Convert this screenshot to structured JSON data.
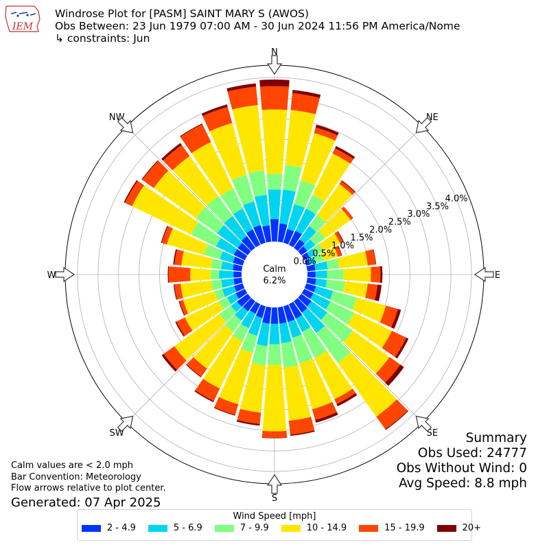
{
  "header": {
    "logo_text": "IEM",
    "title_line1": "Windrose Plot for [PASM] SAINT MARY S (AWOS)",
    "title_line2": "Obs Between: 23 Jun 1979 07:00 AM - 30 Jun 2024 11:56 PM America/Nome",
    "title_line3": "↳ constraints: Jun"
  },
  "summary": {
    "heading": "Summary",
    "obs_used": "Obs Used: 24777",
    "obs_without_wind": "Obs Without Wind: 0",
    "avg_speed": "Avg Speed: 8.8 mph"
  },
  "notes": {
    "calm_note": "Calm values are < 2.0 mph",
    "bar_convention": "Bar Convention: Meteorology",
    "flow_arrows": "Flow arrows relative to plot center.",
    "generated": "Generated: 07 Apr 2025"
  },
  "legend": {
    "title": "Wind Speed [mph]",
    "items": [
      {
        "label": "2 - 4.9",
        "color": "#0033ff"
      },
      {
        "label": "5 - 6.9",
        "color": "#00d4f0"
      },
      {
        "label": "7 - 9.9",
        "color": "#80ff80"
      },
      {
        "label": "10 - 14.9",
        "color": "#ffe600"
      },
      {
        "label": "15 - 19.9",
        "color": "#ff4500"
      },
      {
        "label": "20+",
        "color": "#800000"
      }
    ]
  },
  "chart_data": {
    "type": "windrose",
    "calm_label": "Calm",
    "calm_value": "6.2%",
    "direction_labels": [
      "N",
      "NE",
      "E",
      "SE",
      "S",
      "SW",
      "W",
      "NW"
    ],
    "radial_ticks": [
      "0.0%",
      "0.5%",
      "1.0%",
      "1.5%",
      "2.0%",
      "2.5%",
      "3.0%",
      "3.5%",
      "4.0%"
    ],
    "rmax": 4.3,
    "bins": [
      "2 - 4.9",
      "5 - 6.9",
      "7 - 9.9",
      "10 - 14.9",
      "15 - 19.9",
      "20+"
    ],
    "colors": [
      "#0033ff",
      "#00d4f0",
      "#80ff80",
      "#ffe600",
      "#ff4500",
      "#800000"
    ],
    "directions": [
      {
        "deg": 0,
        "cum": [
          0.55,
          1.27,
          1.65,
          3.22,
          3.79,
          3.95
        ]
      },
      {
        "deg": 10,
        "cum": [
          0.45,
          1.28,
          1.88,
          3.23,
          3.64,
          3.72
        ]
      },
      {
        "deg": 20,
        "cum": [
          0.35,
          0.98,
          1.58,
          2.78,
          2.92,
          2.99
        ]
      },
      {
        "deg": 30,
        "cum": [
          0.38,
          0.98,
          1.35,
          2.47,
          2.61,
          2.67
        ]
      },
      {
        "deg": 40,
        "cum": [
          0.25,
          0.65,
          0.98,
          1.91,
          2.0,
          2.02
        ]
      },
      {
        "deg": 50,
        "cum": [
          0.18,
          0.42,
          0.72,
          1.48,
          1.56,
          1.56
        ]
      },
      {
        "deg": 60,
        "cum": [
          0.15,
          0.32,
          0.52,
          0.97,
          1.05,
          1.07
        ]
      },
      {
        "deg": 70,
        "cum": [
          0.1,
          0.25,
          0.45,
          0.8,
          0.9,
          0.91
        ]
      },
      {
        "deg": 80,
        "cum": [
          0.2,
          0.5,
          0.78,
          1.48,
          1.68,
          1.69
        ]
      },
      {
        "deg": 90,
        "cum": [
          0.2,
          0.48,
          0.88,
          1.55,
          1.78,
          1.83
        ]
      },
      {
        "deg": 100,
        "cum": [
          0.22,
          0.48,
          0.92,
          1.48,
          1.72,
          1.82
        ]
      },
      {
        "deg": 110,
        "cum": [
          0.25,
          0.68,
          1.28,
          2.02,
          2.32,
          2.4
        ]
      },
      {
        "deg": 120,
        "cum": [
          0.25,
          0.71,
          1.35,
          2.37,
          2.76,
          2.82
        ]
      },
      {
        "deg": 130,
        "cum": [
          0.31,
          0.78,
          1.55,
          2.65,
          2.97,
          3.08
        ]
      },
      {
        "deg": 140,
        "cum": [
          0.34,
          0.95,
          1.85,
          3.46,
          3.84,
          3.86
        ]
      },
      {
        "deg": 150,
        "cum": [
          0.39,
          0.75,
          1.45,
          2.57,
          2.7,
          2.76
        ]
      },
      {
        "deg": 160,
        "cum": [
          0.4,
          0.8,
          1.45,
          2.61,
          2.88,
          2.95
        ]
      },
      {
        "deg": 170,
        "cum": [
          0.4,
          0.88,
          1.48,
          2.78,
          3.12,
          3.15
        ]
      },
      {
        "deg": 180,
        "cum": [
          0.4,
          0.9,
          1.4,
          3.02,
          3.18,
          3.19
        ]
      },
      {
        "deg": 190,
        "cum": [
          0.4,
          0.95,
          1.42,
          2.58,
          2.86,
          2.9
        ]
      },
      {
        "deg": 200,
        "cum": [
          0.3,
          0.75,
          1.18,
          2.48,
          2.75,
          2.77
        ]
      },
      {
        "deg": 210,
        "cum": [
          0.26,
          0.65,
          1.0,
          2.28,
          2.62,
          2.65
        ]
      },
      {
        "deg": 220,
        "cum": [
          0.3,
          0.58,
          0.92,
          2.02,
          2.26,
          2.28
        ]
      },
      {
        "deg": 230,
        "cum": [
          0.32,
          0.5,
          0.85,
          2.2,
          2.52,
          2.58
        ]
      },
      {
        "deg": 240,
        "cum": [
          0.25,
          0.48,
          0.7,
          1.62,
          1.85,
          1.88
        ]
      },
      {
        "deg": 250,
        "cum": [
          0.22,
          0.52,
          0.72,
          1.51,
          1.6,
          1.62
        ]
      },
      {
        "deg": 260,
        "cum": [
          0.2,
          0.5,
          0.75,
          1.5,
          1.65,
          1.67
        ]
      },
      {
        "deg": 270,
        "cum": [
          0.2,
          0.55,
          0.75,
          1.25,
          1.78,
          1.8
        ]
      },
      {
        "deg": 280,
        "cum": [
          0.22,
          0.5,
          0.75,
          1.48,
          1.65,
          1.68
        ]
      },
      {
        "deg": 290,
        "cum": [
          0.25,
          0.58,
          0.98,
          1.92,
          2.05,
          2.07
        ]
      },
      {
        "deg": 300,
        "cum": [
          0.3,
          0.78,
          1.45,
          3.05,
          3.24,
          3.27
        ]
      },
      {
        "deg": 310,
        "cum": [
          0.3,
          0.92,
          1.55,
          2.82,
          3.16,
          3.18
        ]
      },
      {
        "deg": 320,
        "cum": [
          0.35,
          0.95,
          1.55,
          2.75,
          3.08,
          3.14
        ]
      },
      {
        "deg": 330,
        "cum": [
          0.42,
          0.98,
          1.52,
          2.78,
          3.26,
          3.28
        ]
      },
      {
        "deg": 340,
        "cum": [
          0.45,
          1.05,
          1.72,
          3.03,
          3.44,
          3.5
        ]
      },
      {
        "deg": 350,
        "cum": [
          0.4,
          1.15,
          1.75,
          3.35,
          3.8,
          3.88
        ]
      }
    ]
  }
}
